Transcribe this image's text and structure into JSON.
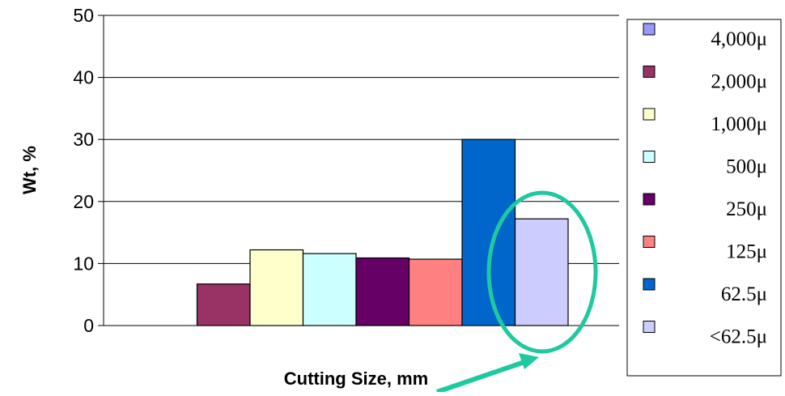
{
  "chart_data": {
    "type": "bar",
    "xlabel": "Cutting Size, mm",
    "ylabel": "Wt, %",
    "ylim": [
      0,
      50
    ],
    "yticks": [
      "0",
      "10",
      "20",
      "30",
      "40",
      "50"
    ],
    "grid": true,
    "legend_position": "right",
    "series": [
      {
        "name": "4,000μ",
        "value": 0,
        "color": "#9999ff"
      },
      {
        "name": "2,000μ",
        "value": 6.7,
        "color": "#993366"
      },
      {
        "name": "1,000μ",
        "value": 12.2,
        "color": "#ffffcc"
      },
      {
        "name": "500μ",
        "value": 11.6,
        "color": "#ccffff"
      },
      {
        "name": "250μ",
        "value": 10.9,
        "color": "#660066"
      },
      {
        "name": "125μ",
        "value": 10.7,
        "color": "#ff8080"
      },
      {
        "name": "62.5μ",
        "value": 30.0,
        "color": "#0066cc"
      },
      {
        "name": "<62.5μ",
        "value": 17.2,
        "color": "#ccccff"
      }
    ],
    "annotation": {
      "type": "ellipse-with-arrow",
      "target_series": "<62.5μ",
      "color": "#1ec9a0"
    }
  }
}
